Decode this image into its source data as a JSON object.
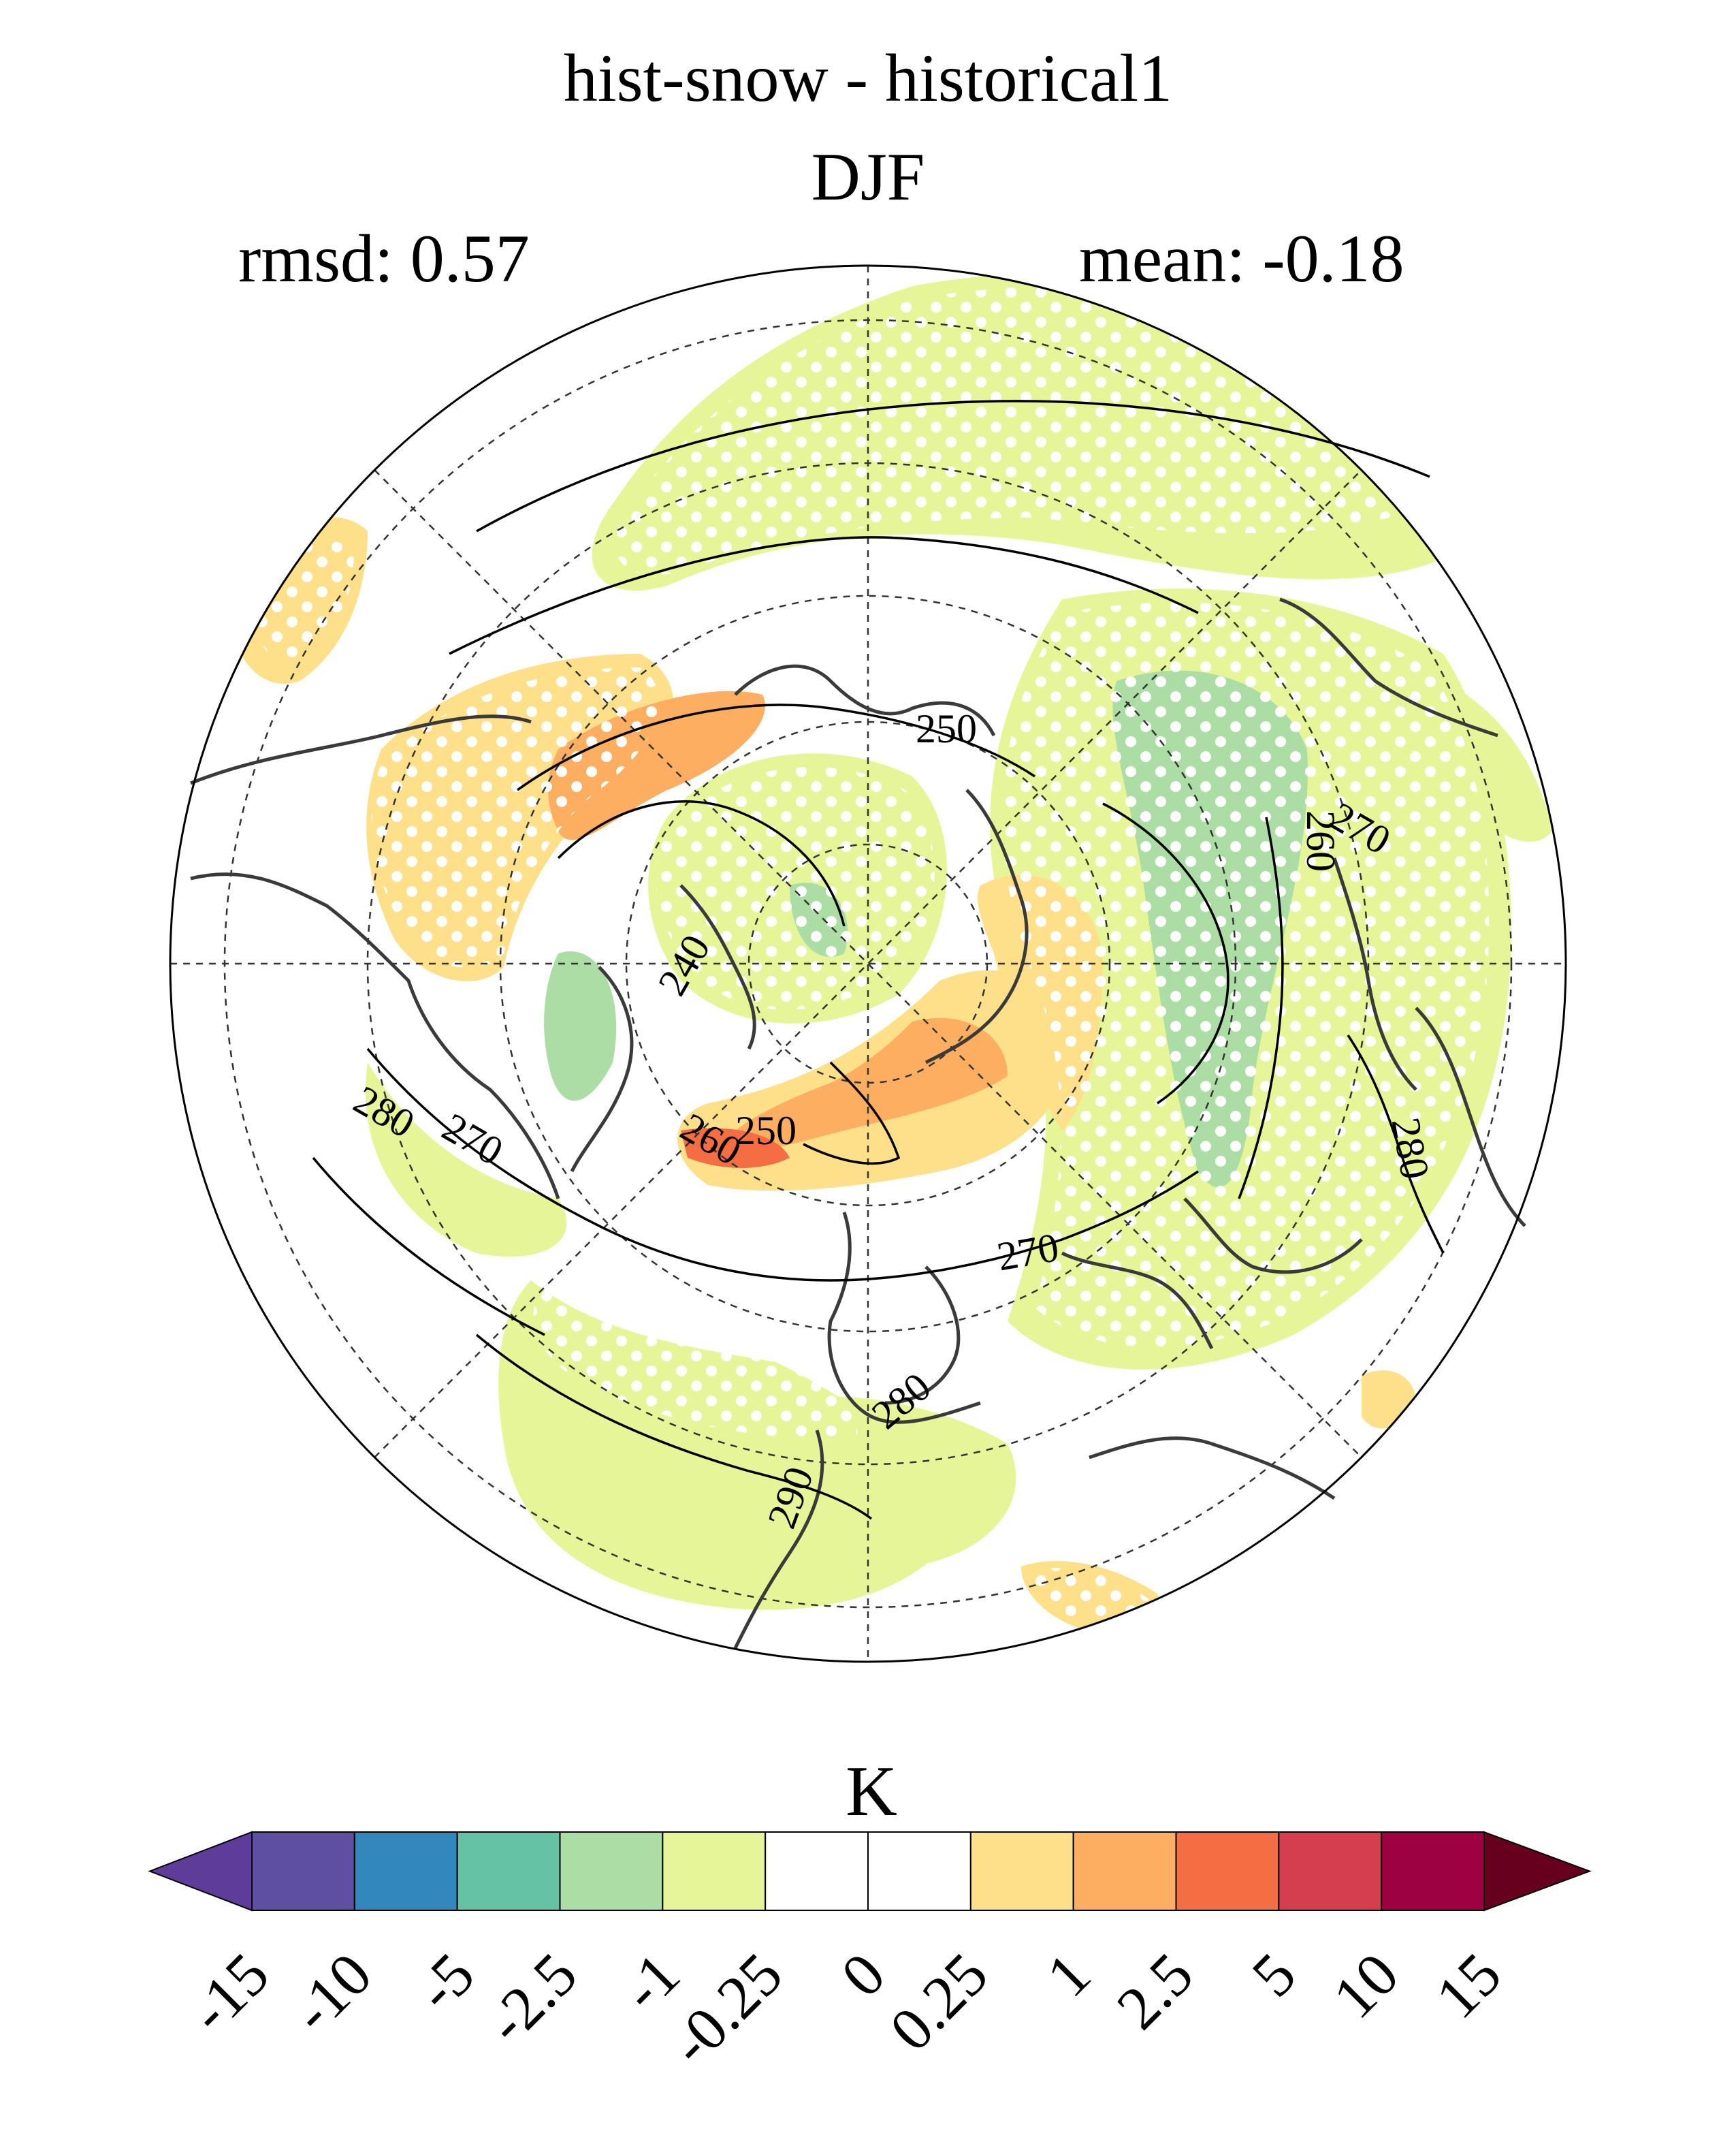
{
  "title": "hist-snow - historical1",
  "season": "DJF",
  "stats": {
    "rmsd": "rmsd: 0.57",
    "mean": "mean: -0.18"
  },
  "units": "K",
  "colorbar": {
    "levels": [
      "-15",
      "-10",
      "-5",
      "-2.5",
      "-1",
      "-0.25",
      "0",
      "0.25",
      "1",
      "2.5",
      "5",
      "10",
      "15"
    ],
    "colors": [
      "#5e3c99",
      "#5e4fa2",
      "#3288bd",
      "#66c2a5",
      "#abdda4",
      "#e6f598",
      "#ffffff",
      "#ffffff",
      "#fee08b",
      "#fdae61",
      "#f46d43",
      "#d53e4f",
      "#9e0142",
      "#67001f"
    ],
    "over_color": "#67001f",
    "under_color": "#5e3c99"
  },
  "contour_labels": [
    "250",
    "260",
    "270",
    "240",
    "280",
    "270",
    "260",
    "250",
    "270",
    "280",
    "280",
    "290"
  ],
  "map": {
    "projection": "north polar stereographic",
    "stippling": true
  }
}
